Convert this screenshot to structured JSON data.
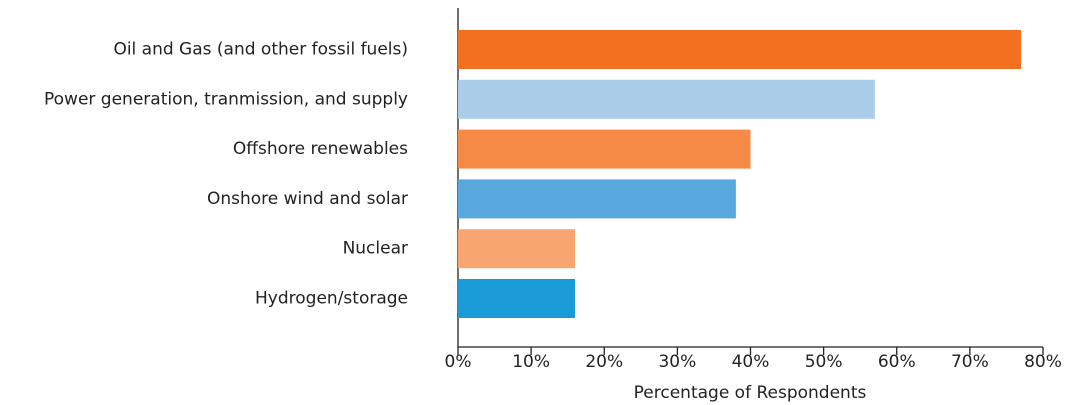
{
  "chart_data": {
    "type": "bar",
    "orientation": "horizontal",
    "categories": [
      "Oil and Gas (and other fossil fuels)",
      "Power generation, tranmission, and supply",
      "Offshore renewables",
      "Onshore wind and solar",
      "Nuclear",
      "Hydrogen/storage"
    ],
    "values": [
      77,
      57,
      40,
      38,
      16,
      16
    ],
    "colors": [
      "#f37021",
      "#a9cce9",
      "#f58a47",
      "#58a8de",
      "#f7a672",
      "#1a9ad6"
    ],
    "xlabel": "Percentage of Respondents",
    "xlim": [
      0,
      80
    ],
    "xticks": [
      {
        "value": 0,
        "label": "0%"
      },
      {
        "value": 10,
        "label": "10%"
      },
      {
        "value": 20,
        "label": "20%"
      },
      {
        "value": 30,
        "label": "30%"
      },
      {
        "value": 40,
        "label": "40%"
      },
      {
        "value": 50,
        "label": "50%"
      },
      {
        "value": 60,
        "label": "60%"
      },
      {
        "value": 70,
        "label": "70%"
      },
      {
        "value": 80,
        "label": "80%"
      }
    ]
  }
}
